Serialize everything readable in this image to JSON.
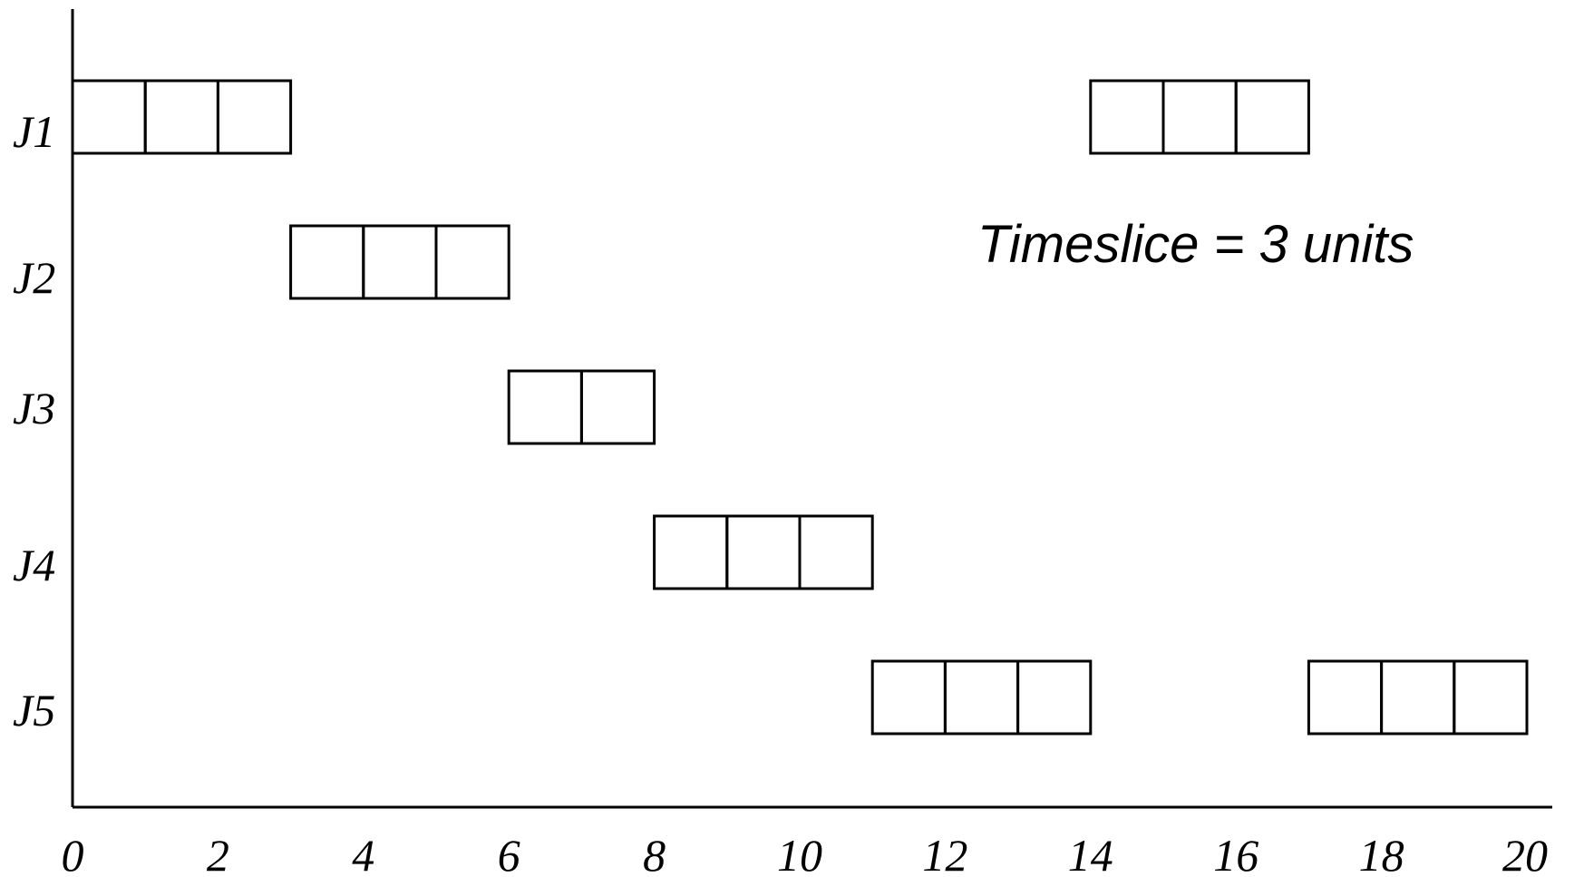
{
  "chart_data": {
    "type": "gantt",
    "title": "",
    "xlabel": "",
    "ylabel": "",
    "xlim": [
      0,
      20
    ],
    "x_ticks": [
      "0",
      "2",
      "4",
      "6",
      "8",
      "10",
      "12",
      "14",
      "16",
      "18",
      "20"
    ],
    "rows": [
      "J1",
      "J2",
      "J3",
      "J4",
      "J5"
    ],
    "annotation": "Timeslice = 3 units",
    "blocks": [
      {
        "row": "J1",
        "start": 0,
        "duration": 3
      },
      {
        "row": "J1",
        "start": 14,
        "duration": 3
      },
      {
        "row": "J2",
        "start": 3,
        "duration": 3
      },
      {
        "row": "J3",
        "start": 6,
        "duration": 2
      },
      {
        "row": "J4",
        "start": 8,
        "duration": 3
      },
      {
        "row": "J5",
        "start": 11,
        "duration": 3
      },
      {
        "row": "J5",
        "start": 17,
        "duration": 3
      }
    ],
    "colors": {
      "stroke": "#000000",
      "background": "#ffffff"
    }
  }
}
